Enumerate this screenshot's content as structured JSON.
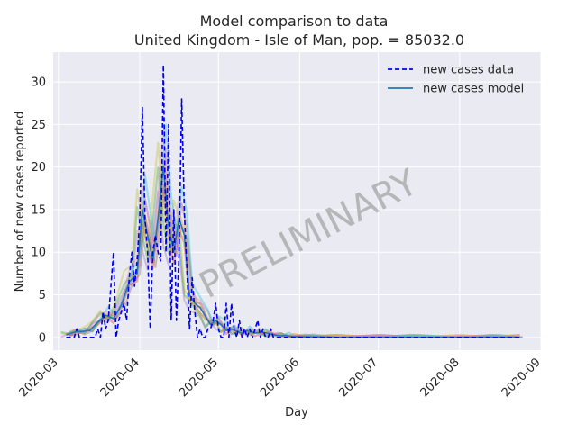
{
  "chart_data": {
    "type": "line",
    "title": "Model comparison to data",
    "subtitle": "United Kingdom - Isle of Man, pop. = 85032.0",
    "xlabel": "Day",
    "ylabel": "Number of new cases reported",
    "watermark": "PRELIMINARY",
    "xlim": [
      "2020-02-28",
      "2020-09-01"
    ],
    "ylim": [
      -1.5,
      33.5
    ],
    "x_ticks": [
      "2020-03",
      "2020-04",
      "2020-05",
      "2020-06",
      "2020-07",
      "2020-08",
      "2020-09"
    ],
    "y_ticks": [
      0,
      5,
      10,
      15,
      20,
      25,
      30
    ],
    "grid": true,
    "legend_position": "top-right",
    "legend": [
      {
        "label": "new cases data",
        "style": "dashed",
        "color": "#0000ee"
      },
      {
        "label": "new cases model",
        "style": "solid",
        "color": "#1f77b4"
      }
    ],
    "series": [
      {
        "name": "new cases data",
        "style": "dashed",
        "color": "#0000ee",
        "x": [
          "2020-03-04",
          "2020-03-05",
          "2020-03-06",
          "2020-03-07",
          "2020-03-08",
          "2020-03-09",
          "2020-03-10",
          "2020-03-11",
          "2020-03-12",
          "2020-03-13",
          "2020-03-14",
          "2020-03-15",
          "2020-03-16",
          "2020-03-17",
          "2020-03-18",
          "2020-03-19",
          "2020-03-20",
          "2020-03-21",
          "2020-03-22",
          "2020-03-23",
          "2020-03-24",
          "2020-03-25",
          "2020-03-26",
          "2020-03-27",
          "2020-03-28",
          "2020-03-29",
          "2020-03-30",
          "2020-03-31",
          "2020-04-01",
          "2020-04-02",
          "2020-04-03",
          "2020-04-04",
          "2020-04-05",
          "2020-04-06",
          "2020-04-07",
          "2020-04-08",
          "2020-04-09",
          "2020-04-10",
          "2020-04-11",
          "2020-04-12",
          "2020-04-13",
          "2020-04-14",
          "2020-04-15",
          "2020-04-16",
          "2020-04-17",
          "2020-04-18",
          "2020-04-19",
          "2020-04-20",
          "2020-04-21",
          "2020-04-22",
          "2020-04-23",
          "2020-04-24",
          "2020-04-25",
          "2020-04-26",
          "2020-04-27",
          "2020-04-28",
          "2020-04-29",
          "2020-04-30",
          "2020-05-01",
          "2020-05-02",
          "2020-05-03",
          "2020-05-04",
          "2020-05-05",
          "2020-05-06",
          "2020-05-07",
          "2020-05-08",
          "2020-05-09",
          "2020-05-10",
          "2020-05-11",
          "2020-05-12",
          "2020-05-13",
          "2020-05-14",
          "2020-05-15",
          "2020-05-16",
          "2020-05-17",
          "2020-05-18",
          "2020-05-19",
          "2020-05-20",
          "2020-05-21",
          "2020-05-22",
          "2020-05-23",
          "2020-05-24",
          "2020-05-25",
          "2020-05-26",
          "2020-05-27",
          "2020-05-28",
          "2020-05-29",
          "2020-05-30",
          "2020-05-31",
          "2020-06-01",
          "2020-06-10",
          "2020-06-20",
          "2020-07-01",
          "2020-07-15",
          "2020-08-01",
          "2020-08-15",
          "2020-08-24"
        ],
        "values": [
          0,
          0,
          0,
          0,
          1,
          0,
          0,
          0,
          0,
          0,
          0,
          0,
          1,
          0,
          3,
          1,
          2,
          6,
          10,
          0,
          2,
          3,
          4,
          2,
          7,
          10,
          6,
          9,
          14,
          27,
          14,
          10,
          1,
          10,
          12,
          10,
          9,
          32,
          10,
          25,
          2,
          15,
          2,
          10,
          28,
          15,
          8,
          1,
          7,
          3,
          0,
          1,
          0,
          0,
          1,
          1,
          2,
          4,
          1,
          0,
          0,
          4,
          0,
          4,
          1,
          0,
          2,
          0,
          1,
          0,
          1,
          0,
          1,
          2,
          0,
          1,
          0,
          0,
          1,
          0,
          0,
          0,
          0,
          0,
          0,
          0,
          0,
          0,
          0,
          0,
          0,
          0,
          0,
          0,
          0,
          0,
          0
        ]
      },
      {
        "name": "new cases model",
        "style": "solid",
        "color": "#1f77b4",
        "x": [
          "2020-03-04",
          "2020-03-07",
          "2020-03-10",
          "2020-03-13",
          "2020-03-16",
          "2020-03-19",
          "2020-03-22",
          "2020-03-25",
          "2020-03-28",
          "2020-03-31",
          "2020-04-02",
          "2020-04-04",
          "2020-04-06",
          "2020-04-08",
          "2020-04-10",
          "2020-04-12",
          "2020-04-14",
          "2020-04-16",
          "2020-04-18",
          "2020-04-20",
          "2020-04-22",
          "2020-04-24",
          "2020-04-26",
          "2020-04-28",
          "2020-04-30",
          "2020-05-02",
          "2020-05-04",
          "2020-05-06",
          "2020-05-08",
          "2020-05-10",
          "2020-05-12",
          "2020-05-15",
          "2020-05-18",
          "2020-05-21",
          "2020-05-24",
          "2020-05-27",
          "2020-05-30",
          "2020-06-05",
          "2020-06-15",
          "2020-07-01",
          "2020-07-15",
          "2020-08-01",
          "2020-08-15",
          "2020-08-24"
        ],
        "values": [
          0.3,
          0.6,
          0.7,
          0.8,
          1.8,
          2.6,
          2.2,
          3.8,
          6.5,
          7.5,
          15,
          12,
          9,
          14,
          20,
          13,
          10,
          14,
          12,
          5,
          4,
          3.5,
          2.5,
          1.5,
          2,
          1.5,
          0.8,
          1,
          0.7,
          0.5,
          0.8,
          0.5,
          0.6,
          0.4,
          0.2,
          0.2,
          0.1,
          0.05,
          0,
          0,
          0,
          0,
          0,
          0
        ]
      }
    ]
  }
}
